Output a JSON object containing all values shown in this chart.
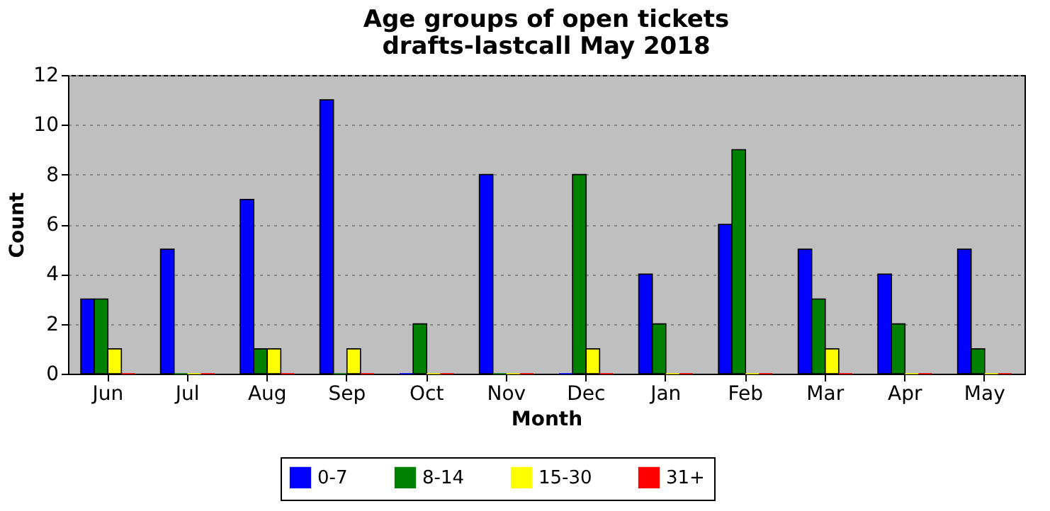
{
  "chart_data": {
    "type": "bar",
    "title": "Age groups of open tickets",
    "subtitle": "drafts-lastcall May 2018",
    "xlabel": "Month",
    "ylabel": "Count",
    "categories": [
      "Jun",
      "Jul",
      "Aug",
      "Sep",
      "Oct",
      "Nov",
      "Dec",
      "Jan",
      "Feb",
      "Mar",
      "Apr",
      "May"
    ],
    "series": [
      {
        "name": "0-7",
        "color": "#0000ff",
        "values": [
          3,
          5,
          7,
          11,
          0,
          8,
          0,
          4,
          6,
          5,
          4,
          5
        ]
      },
      {
        "name": "8-14",
        "color": "#008000",
        "values": [
          3,
          0,
          1,
          0,
          2,
          0,
          8,
          2,
          9,
          3,
          2,
          1
        ]
      },
      {
        "name": "15-30",
        "color": "#ffff00",
        "values": [
          1,
          0,
          1,
          1,
          0,
          0,
          1,
          0,
          0,
          1,
          0,
          0
        ]
      },
      {
        "name": "31+",
        "color": "#ff0000",
        "values": [
          0,
          0,
          0,
          0,
          0,
          0,
          0,
          0,
          0,
          0,
          0,
          0
        ]
      }
    ],
    "ylim": [
      0,
      12
    ],
    "yticks": [
      0,
      2,
      4,
      6,
      8,
      10,
      12
    ],
    "grid": "y",
    "legend": "bottom"
  }
}
